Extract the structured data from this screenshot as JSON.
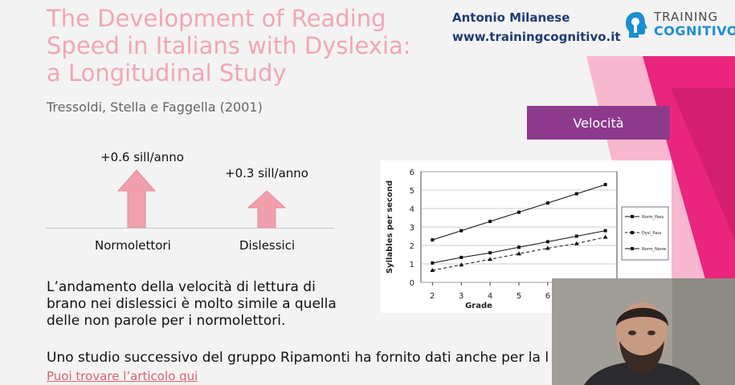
{
  "slide": {
    "title_lines": [
      "The Development of Reading",
      "Speed in Italians with Dyslexia:",
      "a Longitudinal Study"
    ],
    "authors": "Tressoldi, Stella e Faggella (2001)",
    "presenter_name": "Antonio Milanese",
    "presenter_site": "www.trainingcognitivo.it",
    "logo_top": "TRAINING",
    "logo_bottom": "COGNITIVO",
    "badge": "Velocità",
    "arrows": [
      {
        "value_label": "+0.6 sill/anno",
        "group_label": "Normolettori",
        "color": "#f0a0ac"
      },
      {
        "value_label": "+0.3 sill/anno",
        "group_label": "Dislessici",
        "color": "#f0a0ac"
      }
    ],
    "body_text": "L’andamento della velocità di lettura di brano nei dislessici è molto simile a quella delle non parole per i normolettori.",
    "note_text": "Uno studio successivo del gruppo Ripamonti ha fornito dati anche per la l",
    "link_text": "Puoi trovare l’articolo qui"
  },
  "chart_data": {
    "type": "line",
    "xlabel": "Grade",
    "ylabel": "Syllables per second",
    "x": [
      2,
      3,
      4,
      5,
      6,
      7,
      8
    ],
    "x_tick_labels": [
      "2",
      "3",
      "4",
      "5",
      "6"
    ],
    "ylim": [
      0,
      6
    ],
    "y_ticks": [
      "0",
      "1",
      "2",
      "3",
      "4",
      "5",
      "6"
    ],
    "grid": true,
    "series": [
      {
        "name": "Norm_Pass",
        "values": [
          2.3,
          2.8,
          3.3,
          3.8,
          4.3,
          4.8,
          5.3
        ],
        "style": "solid"
      },
      {
        "name": "Dysl_Pass",
        "values": [
          0.65,
          0.95,
          1.25,
          1.55,
          1.85,
          2.1,
          2.45
        ],
        "style": "dashed"
      },
      {
        "name": "Norm_Nonw",
        "values": [
          1.05,
          1.35,
          1.6,
          1.9,
          2.2,
          2.5,
          2.8
        ],
        "style": "solid"
      }
    ]
  },
  "colors": {
    "title": "#f0a7b4",
    "accent": "#e9257d",
    "badge_bg": "#8d3a8c",
    "presenter": "#1f3b73",
    "logo_blue": "#1c8fd1"
  }
}
